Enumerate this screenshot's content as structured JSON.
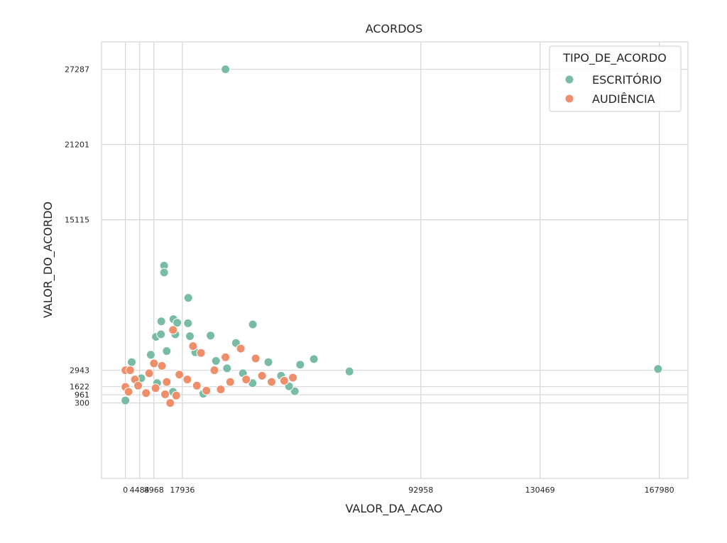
{
  "chart_data": {
    "type": "scatter",
    "title": "ACORDOS",
    "xlabel": "VALOR_DA_ACAO",
    "ylabel": "VALOR_DO_ACORDO",
    "xlim": [
      -7500,
      177000
    ],
    "ylim": [
      -5800,
      29500
    ],
    "x_ticks": [
      0,
      4484,
      8968,
      17936,
      92958,
      130469,
      167980
    ],
    "x_tick_labels": [
      "0",
      "4484",
      "8968",
      "17936",
      "92958",
      "130469",
      "167980"
    ],
    "y_ticks": [
      300,
      961,
      1622,
      2943,
      15115,
      21201,
      27287
    ],
    "y_tick_labels": [
      "300",
      "961",
      "1622",
      "2943",
      "15115",
      "21201",
      "27287"
    ],
    "grid": true,
    "legend": {
      "title": "TIPO_DE_ACORDO",
      "position": "top-right"
    },
    "series": [
      {
        "name": "ESCRITÓRIO",
        "color": "#78bca6",
        "points": [
          [
            31500,
            27287
          ],
          [
            12200,
            11400
          ],
          [
            12200,
            10850
          ],
          [
            19800,
            8800
          ],
          [
            11300,
            6900
          ],
          [
            15100,
            7080
          ],
          [
            16300,
            6790
          ],
          [
            19700,
            6750
          ],
          [
            40100,
            6650
          ],
          [
            9600,
            5650
          ],
          [
            11200,
            5850
          ],
          [
            15700,
            5850
          ],
          [
            20300,
            5700
          ],
          [
            26800,
            5750
          ],
          [
            34800,
            5150
          ],
          [
            59300,
            3850
          ],
          [
            70500,
            2850
          ],
          [
            167600,
            3050
          ],
          [
            53300,
            1250
          ],
          [
            0,
            500
          ],
          [
            2000,
            3600
          ],
          [
            8000,
            4200
          ],
          [
            13000,
            4500
          ],
          [
            22000,
            4400
          ],
          [
            28500,
            3700
          ],
          [
            45000,
            3600
          ],
          [
            49000,
            2500
          ],
          [
            55000,
            3400
          ],
          [
            40000,
            1900
          ],
          [
            24500,
            1050
          ],
          [
            15000,
            1200
          ],
          [
            10000,
            1900
          ],
          [
            5000,
            2300
          ],
          [
            32000,
            3100
          ],
          [
            37000,
            2700
          ],
          [
            51500,
            1650
          ]
        ]
      },
      {
        "name": "AUDIÊNCIA",
        "color": "#ee8e6a",
        "points": [
          [
            14100,
            300
          ],
          [
            0,
            1600
          ],
          [
            0,
            2950
          ],
          [
            1500,
            2950
          ],
          [
            6500,
            1100
          ],
          [
            9000,
            3500
          ],
          [
            15000,
            6200
          ],
          [
            21300,
            4900
          ],
          [
            23800,
            4350
          ],
          [
            31500,
            4000
          ],
          [
            36300,
            4700
          ],
          [
            41000,
            3900
          ],
          [
            50000,
            2100
          ],
          [
            52700,
            2350
          ],
          [
            1000,
            1200
          ],
          [
            3000,
            2200
          ],
          [
            7500,
            2700
          ],
          [
            11500,
            3300
          ],
          [
            13000,
            2000
          ],
          [
            17000,
            2600
          ],
          [
            19500,
            2200
          ],
          [
            22500,
            1700
          ],
          [
            25500,
            1300
          ],
          [
            30000,
            1400
          ],
          [
            33000,
            2000
          ],
          [
            38000,
            2200
          ],
          [
            43000,
            2500
          ],
          [
            46000,
            2000
          ],
          [
            16000,
            900
          ],
          [
            12500,
            1000
          ],
          [
            28000,
            2950
          ],
          [
            4000,
            1700
          ],
          [
            9500,
            1500
          ]
        ]
      }
    ]
  }
}
